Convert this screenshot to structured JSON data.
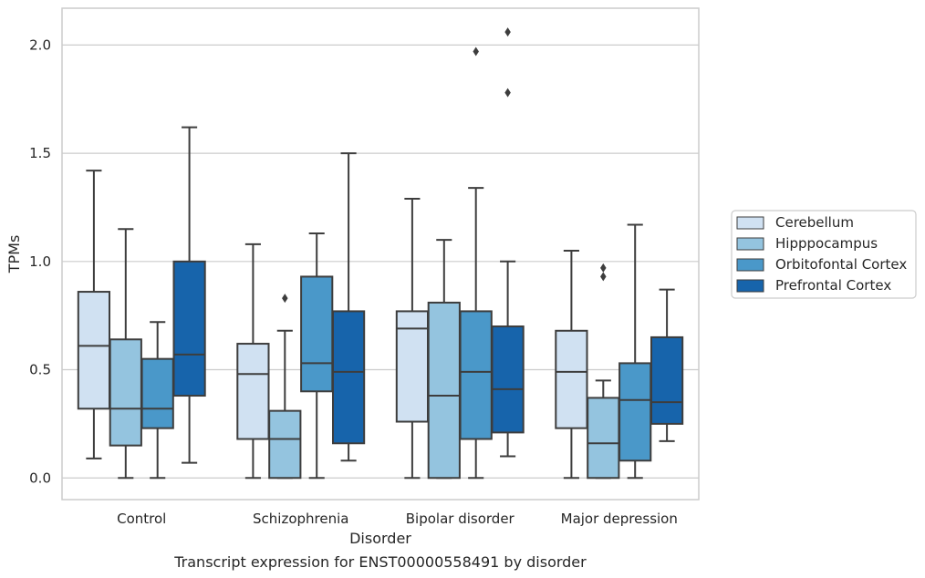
{
  "chart_data": {
    "type": "boxplot",
    "caption": "Transcript expression for ENST00000558491 by disorder",
    "xlabel": "Disorder",
    "ylabel": "TPMs",
    "ylim": [
      -0.1,
      2.17
    ],
    "yticks": [
      0.0,
      0.5,
      1.0,
      1.5,
      2.0
    ],
    "ytick_labels": [
      "0.0",
      "0.5",
      "1.0",
      "1.5",
      "2.0"
    ],
    "grid": "horizontal",
    "legend_position": "right",
    "categories": [
      "Control",
      "Schizophrenia",
      "Bipolar disorder",
      "Major depression"
    ],
    "series": [
      {
        "name": "Cerebellum",
        "color": "#d0e1f2",
        "boxes": [
          {
            "whislo": 0.09,
            "q1": 0.32,
            "med": 0.61,
            "q3": 0.86,
            "whishi": 1.42,
            "fliers": []
          },
          {
            "whislo": 0.0,
            "q1": 0.18,
            "med": 0.48,
            "q3": 0.62,
            "whishi": 1.08,
            "fliers": []
          },
          {
            "whislo": 0.0,
            "q1": 0.26,
            "med": 0.69,
            "q3": 0.77,
            "whishi": 1.29,
            "fliers": []
          },
          {
            "whislo": 0.0,
            "q1": 0.23,
            "med": 0.49,
            "q3": 0.68,
            "whishi": 1.05,
            "fliers": []
          }
        ]
      },
      {
        "name": "Hipppocampus",
        "color": "#94c4df",
        "boxes": [
          {
            "whislo": 0.0,
            "q1": 0.15,
            "med": 0.32,
            "q3": 0.64,
            "whishi": 1.15,
            "fliers": []
          },
          {
            "whislo": 0.0,
            "q1": 0.0,
            "med": 0.18,
            "q3": 0.31,
            "whishi": 0.68,
            "fliers": [
              0.83
            ]
          },
          {
            "whislo": 0.0,
            "q1": 0.0,
            "med": 0.38,
            "q3": 0.81,
            "whishi": 1.1,
            "fliers": []
          },
          {
            "whislo": 0.0,
            "q1": 0.0,
            "med": 0.16,
            "q3": 0.37,
            "whishi": 0.45,
            "fliers": [
              0.93,
              0.97
            ]
          }
        ]
      },
      {
        "name": "Orbitofontal Cortex",
        "color": "#4a98c9",
        "boxes": [
          {
            "whislo": 0.0,
            "q1": 0.23,
            "med": 0.32,
            "q3": 0.55,
            "whishi": 0.72,
            "fliers": []
          },
          {
            "whislo": 0.0,
            "q1": 0.4,
            "med": 0.53,
            "q3": 0.93,
            "whishi": 1.13,
            "fliers": []
          },
          {
            "whislo": 0.0,
            "q1": 0.18,
            "med": 0.49,
            "q3": 0.77,
            "whishi": 1.34,
            "fliers": [
              1.97
            ]
          },
          {
            "whislo": 0.0,
            "q1": 0.08,
            "med": 0.36,
            "q3": 0.53,
            "whishi": 1.17,
            "fliers": []
          }
        ]
      },
      {
        "name": "Prefrontal Cortex",
        "color": "#1764ab",
        "boxes": [
          {
            "whislo": 0.07,
            "q1": 0.38,
            "med": 0.57,
            "q3": 1.0,
            "whishi": 1.62,
            "fliers": []
          },
          {
            "whislo": 0.08,
            "q1": 0.16,
            "med": 0.49,
            "q3": 0.77,
            "whishi": 1.5,
            "fliers": []
          },
          {
            "whislo": 0.1,
            "q1": 0.21,
            "med": 0.41,
            "q3": 0.7,
            "whishi": 1.0,
            "fliers": [
              1.78,
              2.06
            ]
          },
          {
            "whislo": 0.17,
            "q1": 0.25,
            "med": 0.35,
            "q3": 0.65,
            "whishi": 0.87,
            "fliers": []
          }
        ]
      }
    ]
  }
}
